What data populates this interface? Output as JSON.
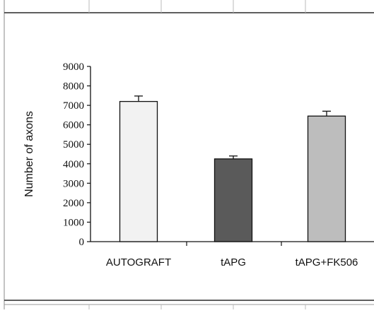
{
  "chart_data": {
    "type": "bar",
    "categories": [
      "AUTOGRAFT",
      "tAPG",
      "tAPG+FK506"
    ],
    "values": [
      7200,
      4250,
      6450
    ],
    "errors": [
      280,
      150,
      250
    ],
    "ylabel": "Number of axons",
    "xlabel": "",
    "ylim": [
      0,
      9000
    ],
    "yticks": [
      0,
      1000,
      2000,
      3000,
      4000,
      5000,
      6000,
      7000,
      8000,
      9000
    ],
    "grid": false,
    "bar_colors": [
      "#f2f2f2",
      "#5a5a5a",
      "#bdbdbd"
    ]
  }
}
